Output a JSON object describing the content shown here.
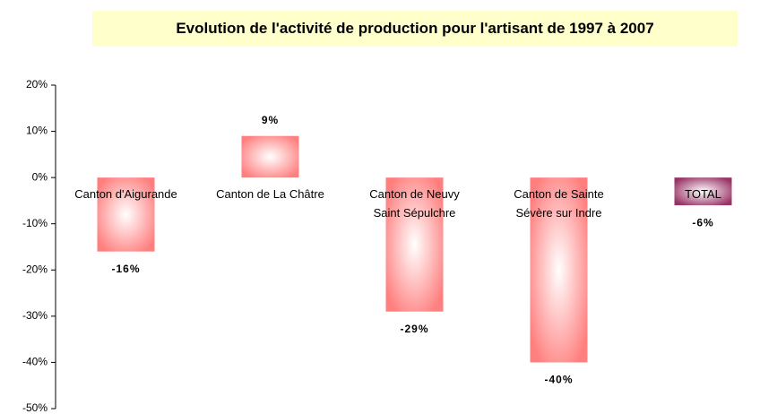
{
  "chart_data": {
    "type": "bar",
    "title": "Evolution de l'activité de production pour l'artisant de 1997 à 2007",
    "categories": [
      "Canton d'Aigurande",
      "Canton de La Châtre",
      "Canton de Neuvy\nSaint Sépulchre",
      "Canton de Sainte\nSévère sur Indre",
      "TOTAL"
    ],
    "values": [
      -16,
      9,
      -29,
      -40,
      -6
    ],
    "value_labels": [
      "-16%",
      "9%",
      "-29%",
      "-40%",
      "-6%"
    ],
    "colors": [
      "#ff7f7f",
      "#ff7f7f",
      "#ff7f7f",
      "#ff7f7f",
      "#993366"
    ],
    "ylim": [
      -50,
      20
    ],
    "yticks": [
      {
        "value": -50,
        "label": "-50%"
      },
      {
        "value": -40,
        "label": "-40%"
      },
      {
        "value": -30,
        "label": "-30%"
      },
      {
        "value": -20,
        "label": "-20%"
      },
      {
        "value": -10,
        "label": "-10%"
      },
      {
        "value": 0,
        "label": "0%"
      },
      {
        "value": 10,
        "label": "10%"
      },
      {
        "value": 20,
        "label": "20%"
      }
    ],
    "grid": false
  }
}
